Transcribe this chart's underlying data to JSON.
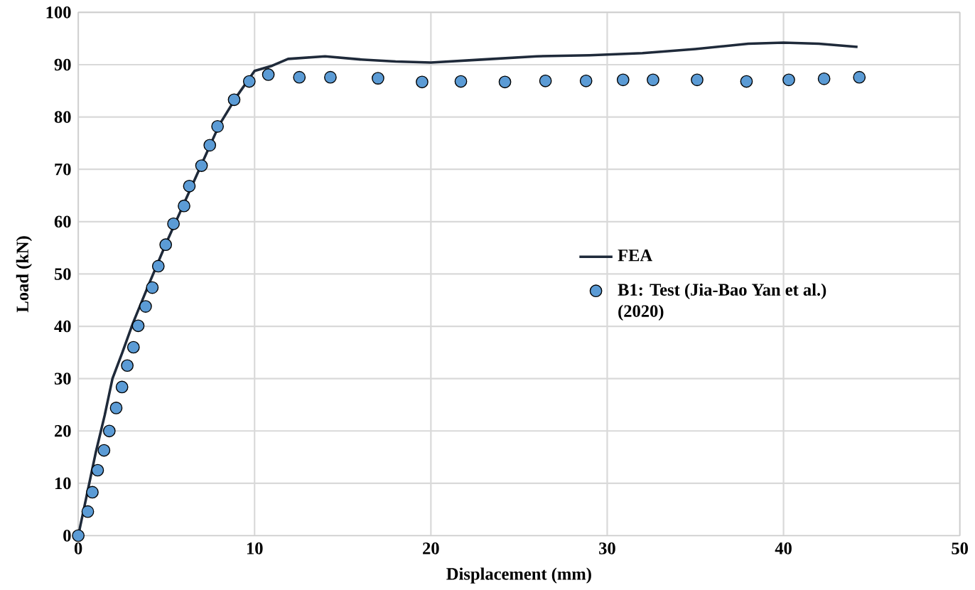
{
  "chart_data": {
    "type": "line",
    "xlabel": "Displacement (mm)",
    "ylabel": "Load (kN)",
    "xlim": [
      0,
      50
    ],
    "ylim": [
      0,
      100
    ],
    "xticks": [
      0,
      10,
      20,
      30,
      40,
      50
    ],
    "yticks": [
      0,
      10,
      20,
      30,
      40,
      50,
      60,
      70,
      80,
      90,
      100
    ],
    "grid": true,
    "legend": "right",
    "series": [
      {
        "name": "FEA",
        "color": "#1f2a3a",
        "marker": "none",
        "line_style": "solid",
        "x": [
          0,
          0.5,
          1,
          1.5,
          1.94,
          2.5,
          3.1,
          4,
          5,
          6,
          7,
          8,
          9,
          10,
          11,
          11.9,
          14,
          16,
          18,
          20,
          23,
          26,
          29,
          32,
          35,
          38,
          40,
          42,
          44.2
        ],
        "values": [
          0,
          8,
          16,
          23,
          30,
          35,
          40.6,
          48,
          56,
          63.5,
          71,
          78.5,
          84,
          88.8,
          89.8,
          91.1,
          91.6,
          91,
          90.6,
          90.4,
          91,
          91.6,
          91.8,
          92.2,
          93,
          94,
          94.2,
          94,
          93.4
        ]
      },
      {
        "name": "B1: Test (Jia-Bao Yan et al.) (2020)",
        "type": "scatter",
        "color": "#5b9bd5",
        "marker": "circle",
        "x": [
          0,
          0.54,
          0.8,
          1.1,
          1.46,
          1.76,
          2.15,
          2.48,
          2.78,
          3.13,
          3.4,
          3.82,
          4.2,
          4.54,
          4.96,
          5.4,
          6.0,
          6.3,
          6.99,
          7.46,
          7.9,
          8.84,
          9.7,
          10.78,
          12.54,
          14.3,
          17.0,
          19.5,
          21.7,
          24.2,
          26.5,
          28.8,
          30.9,
          32.6,
          35.1,
          37.9,
          40.3,
          42.3,
          44.3
        ],
        "values": [
          0,
          4.6,
          8.3,
          12.5,
          16.3,
          20.0,
          24.4,
          28.4,
          32.5,
          36.0,
          40.1,
          43.8,
          47.4,
          51.5,
          55.6,
          59.6,
          63.0,
          66.8,
          70.7,
          74.6,
          78.2,
          83.3,
          86.8,
          88.1,
          87.6,
          87.6,
          87.4,
          86.7,
          86.8,
          86.7,
          86.9,
          86.9,
          87.1,
          87.1,
          87.1,
          86.8,
          87.1,
          87.3,
          87.6
        ]
      }
    ]
  }
}
